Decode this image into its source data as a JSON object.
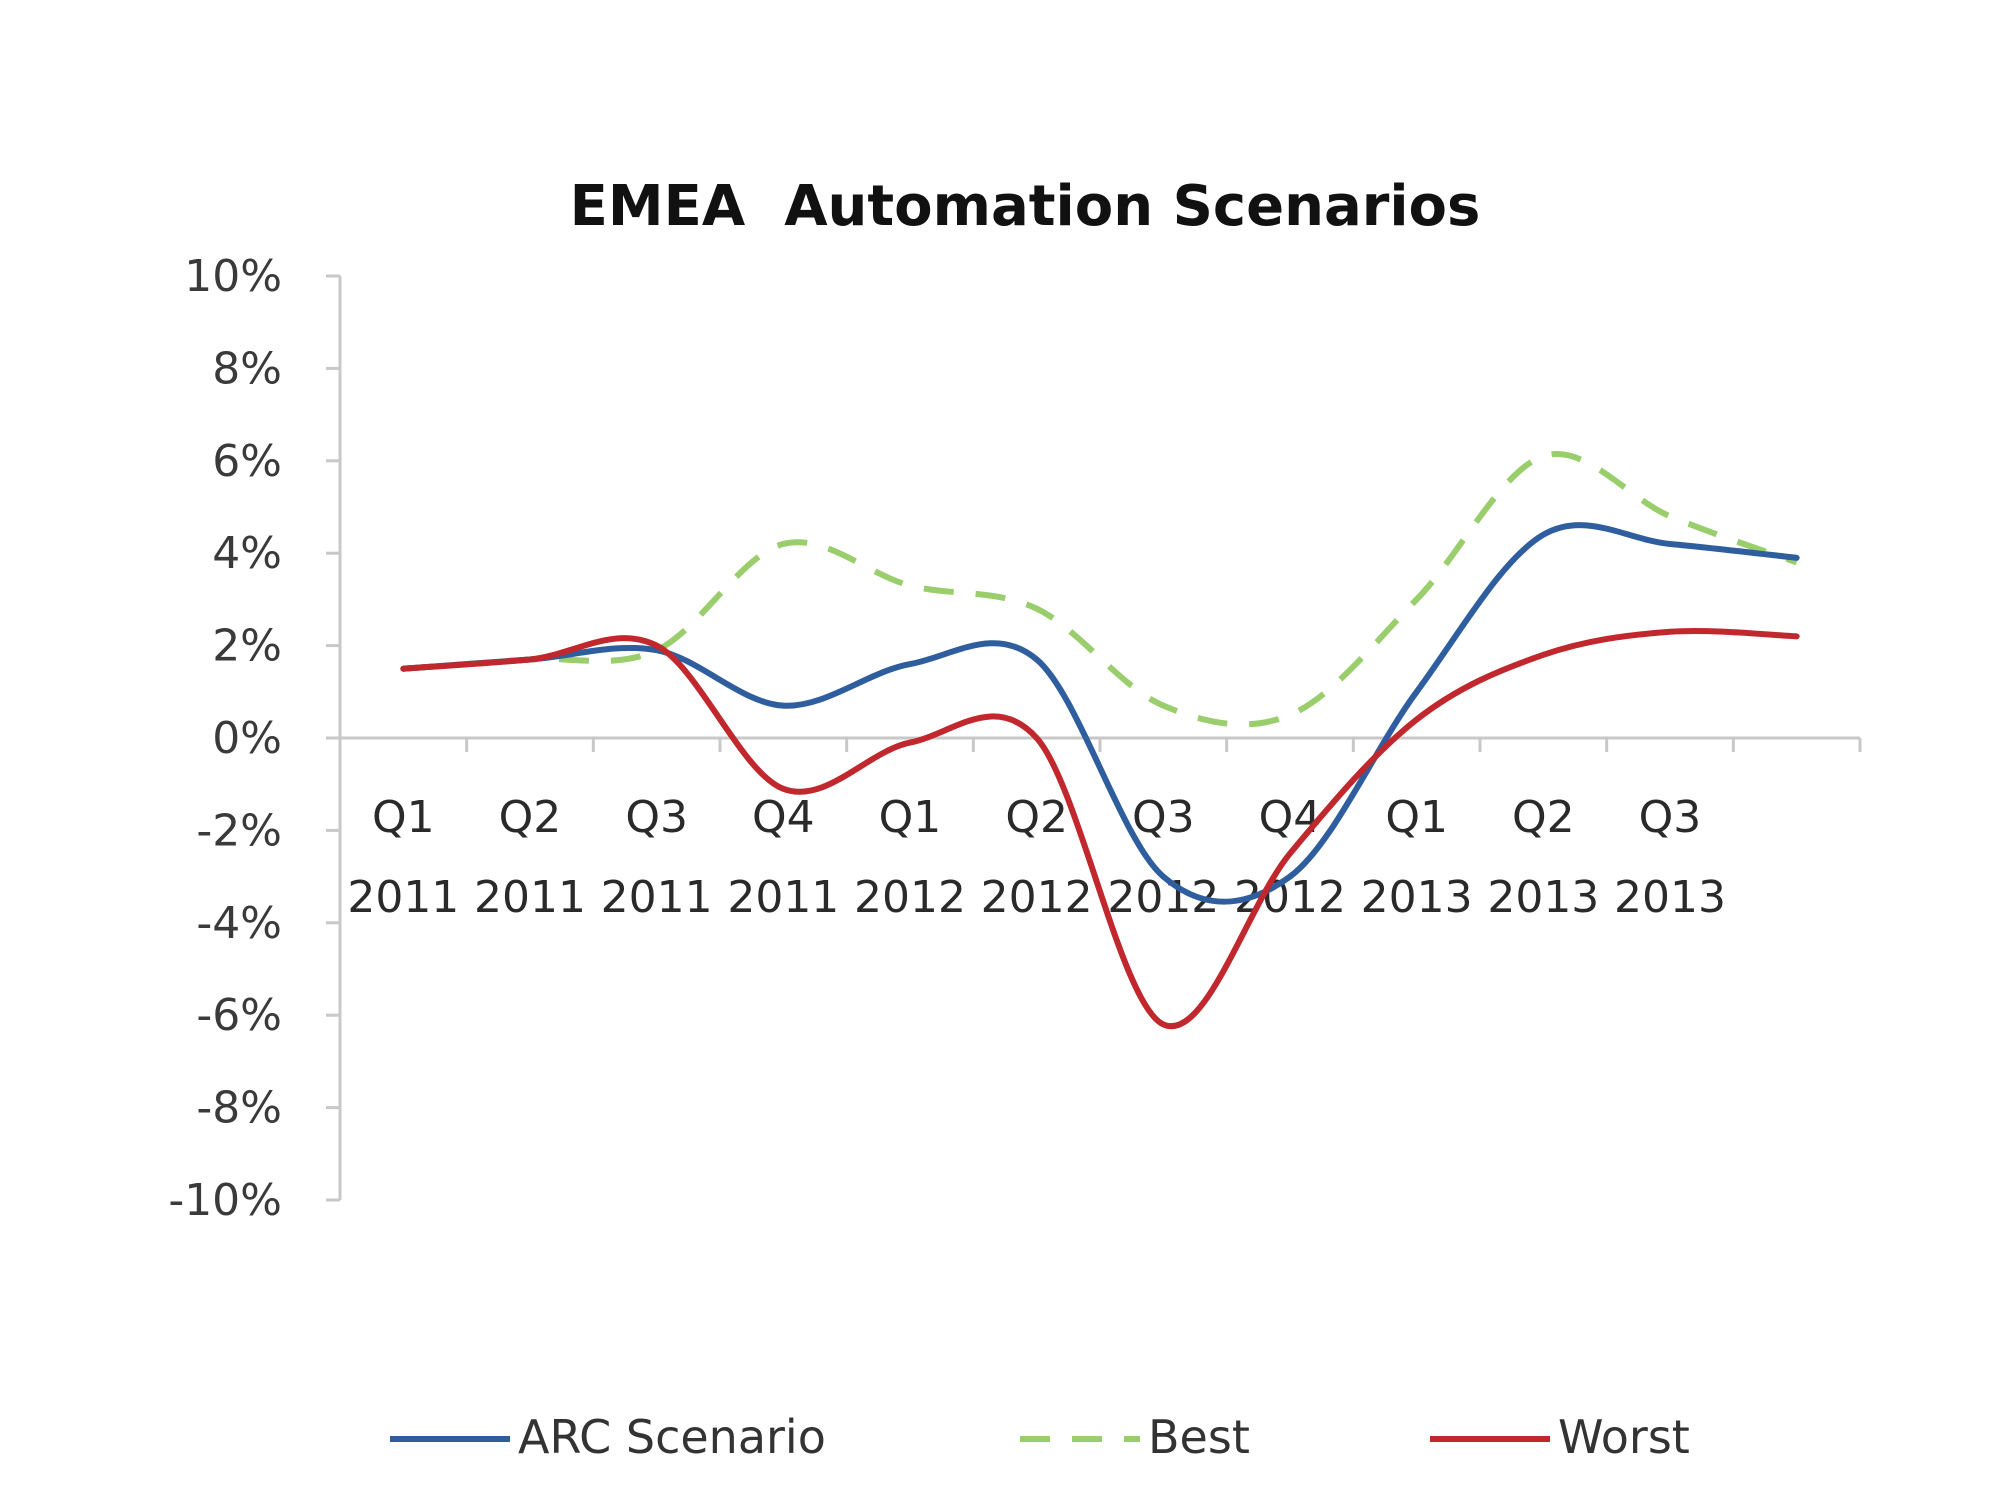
{
  "chart_data": {
    "type": "line",
    "title": "EMEA  Automation Scenarios",
    "xlabel": "",
    "ylabel": "",
    "categories": [
      [
        "Q1",
        "2011"
      ],
      [
        "Q2",
        "2011"
      ],
      [
        "Q3",
        "2011"
      ],
      [
        "Q4",
        "2011"
      ],
      [
        "Q1",
        "2012"
      ],
      [
        "Q2",
        "2012"
      ],
      [
        "Q3",
        "2012"
      ],
      [
        "Q4",
        "2012"
      ],
      [
        "Q1",
        "2013"
      ],
      [
        "Q2",
        "2013"
      ],
      [
        "Q3",
        "2013"
      ],
      [
        "",
        ""
      ]
    ],
    "y_ticks": [
      "10%",
      "8%",
      "6%",
      "4%",
      "2%",
      "0%",
      "-2%",
      "-4%",
      "-6%",
      "-8%",
      "-10%"
    ],
    "ylim": [
      -10,
      10
    ],
    "y_unit": "%",
    "grid": false,
    "legend_position": "bottom",
    "series": [
      {
        "name": "ARC Scenario",
        "color": "#2e5e9e",
        "dash": "solid",
        "values": [
          1.5,
          1.7,
          1.9,
          0.7,
          1.6,
          1.7,
          -3.0,
          -3.0,
          1.0,
          4.4,
          4.2,
          3.9
        ]
      },
      {
        "name": "Best",
        "color": "#9acd6b",
        "dash": "dashed",
        "values": [
          1.5,
          1.7,
          1.9,
          4.2,
          3.3,
          2.8,
          0.7,
          0.5,
          3.0,
          6.1,
          4.8,
          3.8
        ]
      },
      {
        "name": "Worst",
        "color": "#c0282d",
        "dash": "solid",
        "values": [
          1.5,
          1.7,
          2.0,
          -1.1,
          -0.1,
          0.0,
          -6.2,
          -2.5,
          0.4,
          1.8,
          2.3,
          2.2
        ]
      }
    ]
  }
}
